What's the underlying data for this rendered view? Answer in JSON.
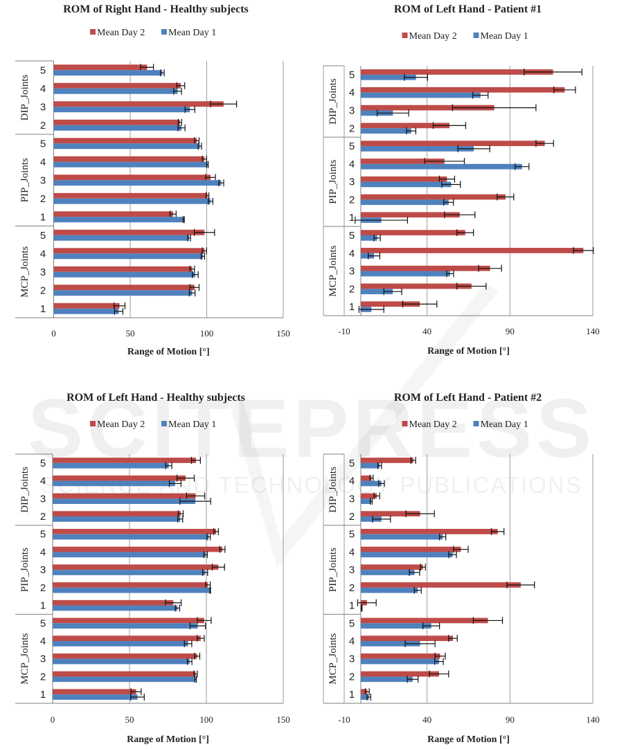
{
  "watermark": {
    "line1": "SCITEPRESS",
    "line2": "SCIENCE AND TECHNOLOGY PUBLICATIONS"
  },
  "colors": {
    "day2": "#BE4B48",
    "day1": "#4F81BD",
    "grid": "#9a9a9a",
    "error": "#111111"
  },
  "chart_data": [
    {
      "type": "bar",
      "orientation": "horizontal",
      "title": "ROM of Right Hand - Healthy subjects",
      "xlabel": "Range of Motion [°]",
      "ylabel": "",
      "xlim": [
        0,
        150
      ],
      "xticks": [
        0,
        50,
        100,
        150
      ],
      "grid": true,
      "legend": "top-center",
      "groups": [
        {
          "name": "DIP_Joints",
          "categories": [
            "5",
            "4",
            "3",
            "2"
          ]
        },
        {
          "name": "PIP_Joints",
          "categories": [
            "5",
            "4",
            "3",
            "2",
            "1"
          ]
        },
        {
          "name": "MCP_Joints",
          "categories": [
            "5",
            "4",
            "3",
            "2",
            "1"
          ]
        }
      ],
      "series": [
        {
          "name": "Mean Day 2",
          "color_key": "day2",
          "values": [
            61,
            83,
            111,
            82.5,
            93.5,
            98.5,
            102.5,
            100.5,
            78,
            98.5,
            98.5,
            90.5,
            92,
            43
          ],
          "errors": [
            4.2,
            2.6,
            8.5,
            1.1,
            1.5,
            1.4,
            3.2,
            0.9,
            2,
            6.6,
            1.4,
            1.5,
            3,
            3.6
          ]
        },
        {
          "name": "Mean Day 1",
          "color_key": "day1",
          "values": [
            71,
            81,
            89,
            83.5,
            95.5,
            100.5,
            109.5,
            102.5,
            85,
            88.5,
            97.5,
            92.5,
            90.5,
            42.5
          ],
          "errors": [
            1.2,
            2.5,
            3.2,
            2.3,
            1.1,
            0.5,
            1.6,
            1.5,
            0.4,
            0.9,
            1.1,
            1.9,
            1.9,
            2.7
          ]
        }
      ]
    },
    {
      "type": "bar",
      "orientation": "horizontal",
      "title": "ROM of Left Hand - Patient #1",
      "xlabel": "Range of Motion [°]",
      "ylabel": "",
      "xlim": [
        -10,
        140
      ],
      "xticks": [
        -10,
        40,
        90,
        140
      ],
      "grid": true,
      "legend": "top-center",
      "groups": [
        {
          "name": "DIP_Joints",
          "categories": [
            "5",
            "4",
            "3",
            "2"
          ]
        },
        {
          "name": "PIP_Joints",
          "categories": [
            "5",
            "4",
            "3",
            "2",
            "1"
          ]
        },
        {
          "name": "MCP_Joints",
          "categories": [
            "5",
            "4",
            "3",
            "2",
            "1"
          ]
        }
      ],
      "series": [
        {
          "name": "Mean Day 2",
          "color_key": "day2",
          "values": [
            116,
            123,
            80.5,
            53.5,
            111,
            50.5,
            52,
            87.3,
            59.7,
            63,
            134.3,
            78,
            66.8,
            35.6
          ],
          "errors": [
            17.4,
            6.5,
            25.2,
            9.8,
            5.3,
            12,
            4.6,
            5,
            9.2,
            5,
            6,
            6.9,
            8.8,
            10.3
          ]
        },
        {
          "name": "Mean Day 1",
          "color_key": "day1",
          "values": [
            33.3,
            72.2,
            19.4,
            30.4,
            68.2,
            97.3,
            54.5,
            53,
            12.4,
            9.9,
            8,
            53.9,
            19.3,
            6.4
          ],
          "errors": [
            7,
            4.6,
            9.5,
            2.8,
            9.6,
            4.2,
            5.6,
            2.9,
            15.8,
            1.9,
            3.5,
            2.1,
            5.4,
            7.5
          ]
        }
      ]
    },
    {
      "type": "bar",
      "orientation": "horizontal",
      "title": "ROM of Left Hand - Healthy subjects",
      "xlabel": "Range of Motion [°]",
      "ylabel": "",
      "xlim": [
        0,
        150
      ],
      "xticks": [
        0,
        50,
        100,
        150
      ],
      "grid": true,
      "legend": "top-center",
      "groups": [
        {
          "name": "DIP_Joints",
          "categories": [
            "5",
            "4",
            "3",
            "2"
          ]
        },
        {
          "name": "PIP_Joints",
          "categories": [
            "5",
            "4",
            "3",
            "2",
            "1"
          ]
        },
        {
          "name": "MCP_Joints",
          "categories": [
            "5",
            "4",
            "3",
            "2",
            "1"
          ]
        }
      ],
      "series": [
        {
          "name": "Mean Day 2",
          "color_key": "day2",
          "values": [
            93.2,
            86.5,
            93,
            83.3,
            106.3,
            110.4,
            107.8,
            101,
            78.5,
            98.6,
            96.3,
            94,
            93,
            54.3
          ],
          "errors": [
            2.9,
            5.6,
            5.9,
            1.6,
            1.5,
            1.7,
            4,
            1.5,
            5.1,
            4.5,
            2.3,
            1.7,
            1.1,
            3.3
          ]
        },
        {
          "name": "Mean Day 1",
          "color_key": "day1",
          "values": [
            75.5,
            79.7,
            92.8,
            83,
            101.5,
            99.5,
            99.2,
            102.5,
            81.2,
            94.4,
            88.1,
            89.1,
            93,
            55.2
          ],
          "errors": [
            2,
            3.8,
            10,
            1.6,
            1.1,
            1.1,
            1.6,
            0.2,
            1.4,
            5,
            2.4,
            1.5,
            0.5,
            4.4
          ]
        }
      ]
    },
    {
      "type": "bar",
      "orientation": "horizontal",
      "title": "ROM of Left Hand - Patient #2",
      "xlabel": "Range of Motion [°]",
      "ylabel": "",
      "xlim": [
        -10,
        140
      ],
      "xticks": [
        -10,
        40,
        90,
        140
      ],
      "grid": true,
      "legend": "top-center",
      "groups": [
        {
          "name": "DIP_Joints",
          "categories": [
            "5",
            "4",
            "3",
            "2"
          ]
        },
        {
          "name": "PIP_Joints",
          "categories": [
            "5",
            "4",
            "3",
            "2",
            "1"
          ]
        },
        {
          "name": "MCP_Joints",
          "categories": [
            "5",
            "4",
            "3",
            "2",
            "1"
          ]
        }
      ],
      "series": [
        {
          "name": "Mean Day 2",
          "color_key": "day2",
          "values": [
            31.7,
            6.5,
            9.7,
            35.8,
            82.6,
            60.4,
            37.5,
            96.5,
            3.7,
            76.7,
            55.6,
            47.9,
            47.2,
            3.9
          ],
          "errors": [
            1.4,
            1,
            1.7,
            8.6,
            3.8,
            4.4,
            1.5,
            8.3,
            5.6,
            8.8,
            2.6,
            3.1,
            5.8,
            1.2
          ]
        },
        {
          "name": "Mean Day 1",
          "color_key": "day1",
          "values": [
            11.4,
            12.5,
            6.3,
            12.5,
            49.4,
            55.4,
            32.4,
            34.4,
            0.5,
            42.5,
            35.8,
            47.2,
            31.3,
            4.9
          ],
          "errors": [
            1.1,
            1.7,
            0.6,
            5.4,
            1.9,
            2.3,
            3.1,
            2.1,
            0.3,
            5,
            9,
            2.6,
            3.3,
            1.1
          ]
        }
      ]
    }
  ]
}
